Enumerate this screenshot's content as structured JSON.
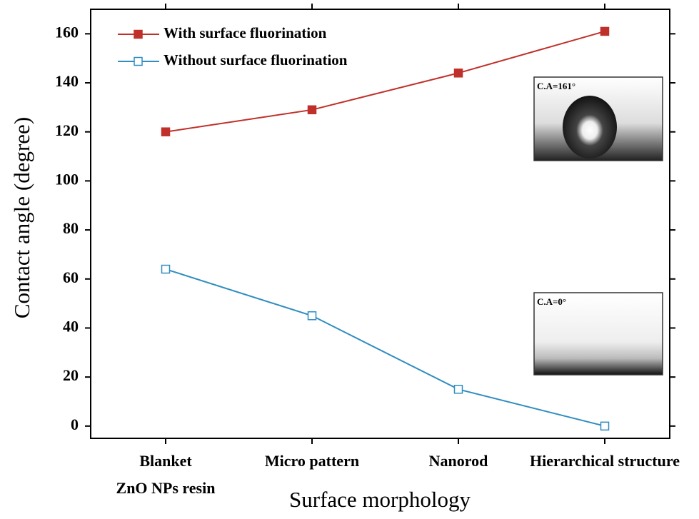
{
  "chart_data": {
    "type": "line",
    "categories": [
      "Blanket\nZnO NPs resin",
      "Micro pattern",
      "Nanorod",
      "Hierarchical structure"
    ],
    "series": [
      {
        "name": "With surface fluorination",
        "color": "#c0302a",
        "marker": "filled-square",
        "values": [
          120,
          129,
          144,
          161
        ]
      },
      {
        "name": "Without surface fluorination",
        "color": "#2f8dc0",
        "marker": "hollow-square",
        "values": [
          64,
          45,
          15,
          0
        ]
      }
    ],
    "x_label": "Surface morphology",
    "y_label": "Contact angle (degree)",
    "ylim": [
      -5,
      170
    ],
    "yticks": [
      0,
      20,
      40,
      60,
      80,
      100,
      120,
      140,
      160
    ],
    "legend": "upper left",
    "annotations": [
      "C.A=161°",
      "C.A=0°"
    ]
  }
}
